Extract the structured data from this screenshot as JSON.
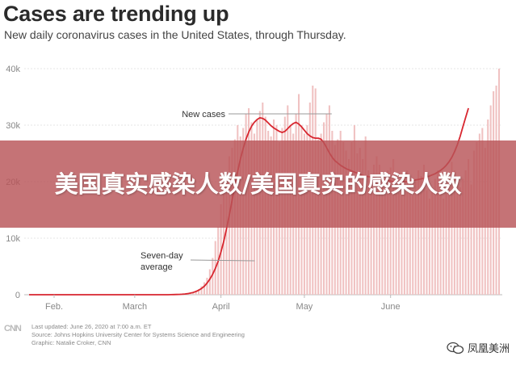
{
  "chart_data": {
    "type": "bar",
    "title": "Cases are trending up",
    "subtitle": "New daily coronavirus cases in the United States, through Thursday.",
    "y_ticks": [
      "40k",
      "30k",
      "20k",
      "10k",
      "0"
    ],
    "ylim": [
      0,
      40000
    ],
    "x_ticks": [
      "Feb.",
      "March",
      "April",
      "May",
      "June"
    ],
    "grid": true,
    "series": [
      {
        "kind": "bar",
        "color": "#f0c2c2",
        "values": [
          0,
          0,
          0,
          0,
          0,
          0,
          0,
          0,
          0,
          0,
          0,
          0,
          0,
          0,
          0,
          0,
          0,
          0,
          0,
          0,
          0,
          0,
          0,
          0,
          0,
          0,
          0,
          0,
          0,
          0,
          0,
          0,
          0,
          0,
          0,
          0,
          0,
          0,
          0,
          0,
          0,
          0,
          0,
          0,
          0,
          0,
          0,
          0,
          0,
          0,
          0,
          10,
          20,
          30,
          50,
          70,
          110,
          180,
          300,
          450,
          700,
          1000,
          1500,
          2200,
          3000,
          4500,
          6500,
          9500,
          12000,
          16000,
          19000,
          21000,
          24500,
          26000,
          27500,
          30000,
          28000,
          29500,
          32000,
          33000,
          30500,
          28500,
          31000,
          32500,
          34000,
          31500,
          29000,
          28000,
          31000,
          30000,
          27000,
          29500,
          31500,
          33500,
          30000,
          28500,
          32000,
          35500,
          30000,
          28500,
          30000,
          34000,
          37000,
          36500,
          27500,
          28500,
          30500,
          32000,
          33500,
          29000,
          26500,
          27500,
          29000,
          27000,
          25500,
          24000,
          27000,
          30000,
          25000,
          26000,
          24000,
          28000,
          22000,
          19500,
          23000,
          24500,
          23000,
          21000,
          19000,
          22000,
          22500,
          24000,
          21500,
          18000,
          19000,
          21500,
          22000,
          20500,
          17500,
          20000,
          22000,
          21000,
          23000,
          18500,
          17000,
          19000,
          20500,
          22000,
          19500,
          17000,
          18500,
          21000,
          23500,
          22000,
          21000,
          19000,
          20500,
          22000,
          24000,
          19500,
          25500,
          27000,
          28500,
          29500,
          26000,
          31000,
          33500,
          36000,
          37000,
          40000
        ]
      },
      {
        "kind": "line",
        "name": "Seven-day average",
        "color": "#d8262f",
        "values": [
          0,
          0,
          0,
          0,
          0,
          0,
          0,
          0,
          0,
          0,
          0,
          0,
          0,
          0,
          0,
          0,
          0,
          0,
          0,
          0,
          0,
          0,
          0,
          0,
          0,
          0,
          0,
          0,
          0,
          0,
          0,
          0,
          0,
          0,
          0,
          0,
          0,
          0,
          0,
          0,
          0,
          0,
          0,
          0,
          0,
          0,
          0,
          0,
          0,
          0,
          0,
          20,
          30,
          40,
          60,
          90,
          130,
          190,
          280,
          400,
          570,
          800,
          1100,
          1500,
          2050,
          2750,
          3600,
          4650,
          5950,
          7550,
          9450,
          11650,
          14100,
          16700,
          19300,
          21800,
          24000,
          25900,
          27500,
          28800,
          29800,
          30500,
          31000,
          31300,
          31200,
          30900,
          30400,
          29900,
          29500,
          29200,
          28900,
          28700,
          28900,
          29400,
          29900,
          30300,
          30500,
          30200,
          29700,
          29100,
          28500,
          28100,
          27800,
          27700,
          27700,
          27500,
          26900,
          26000,
          25100,
          24300,
          23700,
          23300,
          22900,
          22600,
          22300,
          22100,
          21900,
          21700,
          21500,
          21300,
          21100,
          21000,
          20900,
          20800,
          20700,
          20600,
          20500,
          20400,
          20300,
          20200,
          20100,
          20000,
          19900,
          19900,
          19900,
          20000,
          20000,
          20100,
          20200,
          20300,
          20400,
          20500,
          20600,
          20800,
          21000,
          21200,
          21400,
          21700,
          22000,
          22400,
          22900,
          23500,
          24300,
          25300,
          26500,
          28000,
          29700,
          31400,
          33000
        ]
      }
    ],
    "annotations": [
      {
        "text": "New cases",
        "at_index": 110,
        "at_value": 32000
      },
      {
        "text": "Seven-day",
        "line2": "average",
        "at_index": 82,
        "at_value": 6000
      }
    ]
  },
  "banner": {
    "text": "美国真实感染人数/美国真实的感染人数"
  },
  "footer": {
    "logo": "CNN",
    "lines": [
      "Last updated: June 26, 2020 at 7:00 a.m. ET",
      "Source: Johns Hopkins University Center for Systems Science and Engineering",
      "Graphic: Natalie Croker, CNN"
    ]
  },
  "watermark": {
    "text": "凤凰美洲",
    "icon": "wechat-icon"
  }
}
